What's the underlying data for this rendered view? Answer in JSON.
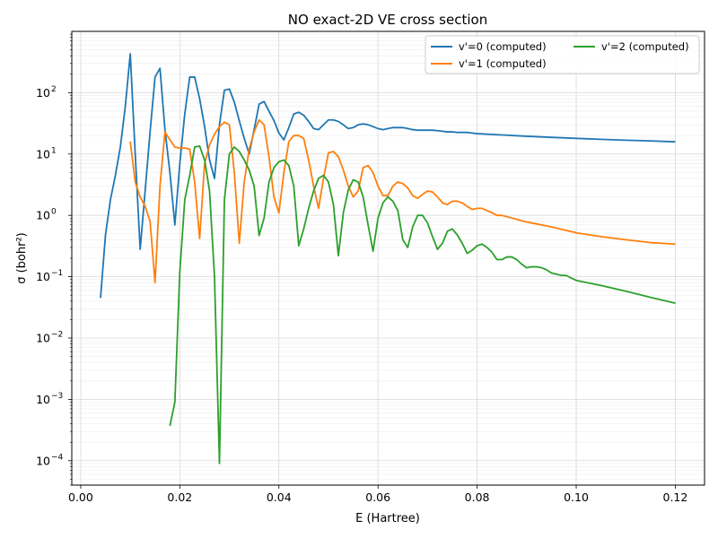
{
  "chart_data": {
    "type": "line",
    "title": "NO exact-2D VE cross section",
    "xlabel": "E (Hartree)",
    "ylabel": "σ (bohr²)",
    "xlim": [
      -0.0018,
      0.1259
    ],
    "ylim": [
      4e-05,
      1000
    ],
    "yscale": "log",
    "grid": true,
    "legend_position": "top-right",
    "x_ticks": [
      0.0,
      0.02,
      0.04,
      0.06,
      0.08,
      0.1,
      0.12
    ],
    "x_tick_labels": [
      "0.00",
      "0.02",
      "0.04",
      "0.06",
      "0.08",
      "0.10",
      "0.12"
    ],
    "y_ticks": [
      0.0001,
      0.001,
      0.01,
      0.1,
      1,
      10,
      100
    ],
    "y_tick_labels": [
      [
        "10",
        "−4"
      ],
      [
        "10",
        "−3"
      ],
      [
        "10",
        "−2"
      ],
      [
        "10",
        "−1"
      ],
      [
        "10",
        "0"
      ],
      [
        "10",
        "1"
      ],
      [
        "10",
        "2"
      ]
    ],
    "series": [
      {
        "name": "v'=0 (computed)",
        "color": "#1f77b4",
        "x": [
          0.004,
          0.005,
          0.006,
          0.007,
          0.008,
          0.009,
          0.01,
          0.011,
          0.012,
          0.013,
          0.014,
          0.015,
          0.016,
          0.017,
          0.018,
          0.019,
          0.02,
          0.021,
          0.022,
          0.023,
          0.024,
          0.025,
          0.026,
          0.027,
          0.028,
          0.029,
          0.03,
          0.031,
          0.032,
          0.033,
          0.034,
          0.035,
          0.036,
          0.037,
          0.038,
          0.039,
          0.04,
          0.041,
          0.042,
          0.043,
          0.044,
          0.045,
          0.046,
          0.047,
          0.048,
          0.049,
          0.05,
          0.051,
          0.052,
          0.053,
          0.054,
          0.055,
          0.056,
          0.057,
          0.058,
          0.059,
          0.06,
          0.061,
          0.062,
          0.063,
          0.064,
          0.065,
          0.066,
          0.067,
          0.068,
          0.069,
          0.07,
          0.071,
          0.072,
          0.073,
          0.074,
          0.075,
          0.076,
          0.077,
          0.078,
          0.079,
          0.08,
          0.085,
          0.09,
          0.095,
          0.1,
          0.105,
          0.11,
          0.115,
          0.12
        ],
        "y": [
          0.045,
          0.48,
          1.8,
          4.5,
          13,
          60,
          430,
          10,
          0.28,
          2.5,
          23,
          180,
          250,
          25,
          5,
          0.7,
          7,
          45,
          180,
          180,
          80,
          28,
          8,
          4,
          30,
          110,
          115,
          70,
          35,
          18,
          10,
          25,
          65,
          72,
          50,
          35,
          22,
          17,
          27,
          45,
          48,
          43,
          34,
          26,
          25,
          30,
          36,
          36,
          34,
          30,
          26,
          27,
          30,
          31,
          30,
          28,
          26,
          25,
          26,
          27,
          27,
          27,
          26,
          25,
          24.5,
          24.5,
          24.5,
          24.5,
          24,
          23.5,
          23,
          23,
          22.5,
          22.5,
          22.5,
          22,
          21.5,
          20.5,
          19.5,
          18.7,
          18,
          17.4,
          16.8,
          16.4,
          15.8
        ]
      },
      {
        "name": "v'=1 (computed)",
        "color": "#ff7f0e",
        "x": [
          0.01,
          0.011,
          0.012,
          0.013,
          0.014,
          0.015,
          0.016,
          0.017,
          0.018,
          0.019,
          0.02,
          0.021,
          0.022,
          0.023,
          0.024,
          0.025,
          0.026,
          0.027,
          0.028,
          0.029,
          0.03,
          0.031,
          0.032,
          0.033,
          0.034,
          0.035,
          0.036,
          0.037,
          0.038,
          0.039,
          0.04,
          0.041,
          0.042,
          0.043,
          0.044,
          0.045,
          0.046,
          0.047,
          0.048,
          0.049,
          0.05,
          0.051,
          0.052,
          0.053,
          0.054,
          0.055,
          0.056,
          0.057,
          0.058,
          0.059,
          0.06,
          0.061,
          0.062,
          0.063,
          0.064,
          0.065,
          0.066,
          0.067,
          0.068,
          0.069,
          0.07,
          0.071,
          0.072,
          0.073,
          0.074,
          0.075,
          0.076,
          0.077,
          0.078,
          0.079,
          0.08,
          0.081,
          0.082,
          0.083,
          0.084,
          0.085,
          0.09,
          0.095,
          0.1,
          0.105,
          0.11,
          0.115,
          0.12
        ],
        "y": [
          16,
          3.5,
          2,
          1.4,
          0.8,
          0.08,
          3,
          23,
          17,
          13,
          12.5,
          12.5,
          12,
          3.5,
          0.42,
          7,
          14,
          21,
          28,
          33,
          30,
          5,
          0.35,
          3.5,
          12,
          23,
          36,
          30,
          9,
          2,
          1.1,
          5,
          16,
          20,
          20,
          18,
          8,
          3,
          1.3,
          4,
          10.5,
          11,
          9,
          5.5,
          3,
          2,
          2.5,
          6,
          6.5,
          5,
          3,
          2.1,
          2.1,
          3,
          3.5,
          3.3,
          2.8,
          2.1,
          1.9,
          2.2,
          2.5,
          2.4,
          2,
          1.6,
          1.5,
          1.7,
          1.7,
          1.6,
          1.4,
          1.25,
          1.3,
          1.3,
          1.2,
          1.1,
          1.0,
          1.0,
          0.78,
          0.65,
          0.52,
          0.45,
          0.4,
          0.36,
          0.34
        ]
      },
      {
        "name": "v'=2 (computed)",
        "color": "#2ca02c",
        "x": [
          0.018,
          0.019,
          0.02,
          0.021,
          0.022,
          0.023,
          0.024,
          0.025,
          0.026,
          0.027,
          0.028,
          0.029,
          0.03,
          0.031,
          0.032,
          0.033,
          0.034,
          0.035,
          0.036,
          0.037,
          0.038,
          0.039,
          0.04,
          0.041,
          0.042,
          0.043,
          0.044,
          0.045,
          0.046,
          0.047,
          0.048,
          0.049,
          0.05,
          0.051,
          0.052,
          0.053,
          0.054,
          0.055,
          0.056,
          0.057,
          0.058,
          0.059,
          0.06,
          0.061,
          0.062,
          0.063,
          0.064,
          0.065,
          0.066,
          0.067,
          0.068,
          0.069,
          0.07,
          0.071,
          0.072,
          0.073,
          0.074,
          0.075,
          0.076,
          0.077,
          0.078,
          0.079,
          0.08,
          0.081,
          0.082,
          0.083,
          0.084,
          0.085,
          0.086,
          0.087,
          0.088,
          0.089,
          0.09,
          0.091,
          0.092,
          0.093,
          0.094,
          0.095,
          0.096,
          0.097,
          0.098,
          0.099,
          0.1,
          0.105,
          0.11,
          0.115,
          0.12
        ],
        "y": [
          0.00037,
          0.0009,
          0.12,
          1.8,
          4.5,
          13,
          13.5,
          8,
          2.5,
          0.1,
          9e-05,
          1.8,
          10,
          13,
          11,
          8,
          5.5,
          3,
          0.47,
          0.9,
          3.5,
          6,
          7.5,
          8,
          6.5,
          3,
          0.32,
          0.6,
          1.3,
          2.5,
          4,
          4.5,
          3.5,
          1.5,
          0.22,
          1.1,
          2.6,
          3.8,
          3.5,
          2,
          0.7,
          0.26,
          0.9,
          1.6,
          2,
          1.7,
          1.2,
          0.4,
          0.3,
          0.65,
          1,
          1,
          0.75,
          0.45,
          0.28,
          0.35,
          0.55,
          0.6,
          0.48,
          0.35,
          0.24,
          0.27,
          0.32,
          0.34,
          0.3,
          0.25,
          0.19,
          0.19,
          0.21,
          0.21,
          0.19,
          0.16,
          0.14,
          0.145,
          0.145,
          0.14,
          0.13,
          0.115,
          0.11,
          0.105,
          0.105,
          0.095,
          0.087,
          0.072,
          0.058,
          0.046,
          0.037
        ]
      }
    ]
  }
}
